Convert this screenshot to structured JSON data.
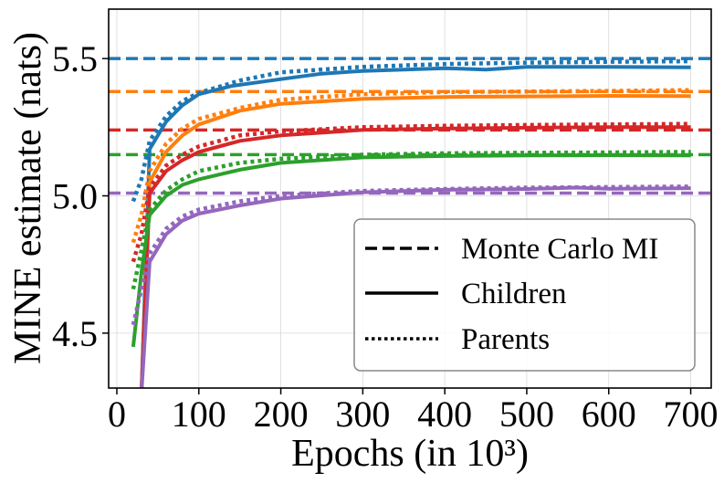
{
  "chart_data": {
    "type": "line",
    "title": "",
    "xlabel": "Epochs (in 10³)",
    "ylabel": "MINE estimate (nats)",
    "xlim": [
      -10,
      725
    ],
    "ylim": [
      4.3,
      5.68
    ],
    "xticks": [
      0,
      100,
      200,
      300,
      400,
      500,
      600,
      700
    ],
    "xtick_labels": [
      "0",
      "100",
      "200",
      "300",
      "400",
      "500",
      "600",
      "700"
    ],
    "yticks": [
      4.5,
      5.0,
      5.5
    ],
    "ytick_labels": [
      "4.5",
      "5.0",
      "5.5"
    ],
    "grid": true,
    "legend_position": "lower-right",
    "legend": [
      {
        "label": "Monte Carlo MI",
        "style": "dashed"
      },
      {
        "label": "Children",
        "style": "solid"
      },
      {
        "label": "Parents",
        "style": "dotted"
      }
    ],
    "series": [
      {
        "name": "blue",
        "color": "#1f77b4",
        "monte_carlo": 5.5,
        "children": {
          "x": [
            30,
            40,
            60,
            80,
            100,
            140,
            200,
            250,
            300,
            400,
            450,
            500,
            600,
            700
          ],
          "y": [
            4.28,
            5.17,
            5.27,
            5.33,
            5.37,
            5.4,
            5.425,
            5.445,
            5.455,
            5.465,
            5.46,
            5.47,
            5.47,
            5.468
          ]
        },
        "parents": {
          "x": [
            20,
            30,
            40,
            60,
            80,
            100,
            150,
            200,
            300,
            400,
            500,
            600,
            700
          ],
          "y": [
            4.98,
            5.06,
            5.2,
            5.29,
            5.345,
            5.375,
            5.42,
            5.45,
            5.47,
            5.48,
            5.485,
            5.488,
            5.49
          ]
        }
      },
      {
        "name": "orange",
        "color": "#ff7f0e",
        "monte_carlo": 5.38,
        "children": {
          "x": [
            30,
            40,
            60,
            80,
            100,
            150,
            200,
            300,
            400,
            500,
            600,
            700
          ],
          "y": [
            4.28,
            5.05,
            5.16,
            5.22,
            5.26,
            5.31,
            5.335,
            5.353,
            5.36,
            5.362,
            5.364,
            5.363
          ]
        },
        "parents": {
          "x": [
            20,
            30,
            40,
            60,
            80,
            100,
            150,
            200,
            300,
            400,
            500,
            600,
            700
          ],
          "y": [
            4.83,
            4.93,
            5.09,
            5.19,
            5.245,
            5.28,
            5.32,
            5.35,
            5.37,
            5.378,
            5.38,
            5.382,
            5.385
          ]
        }
      },
      {
        "name": "red",
        "color": "#d62728",
        "monte_carlo": 5.24,
        "children": {
          "x": [
            30,
            40,
            60,
            80,
            100,
            150,
            200,
            300,
            400,
            500,
            600,
            700
          ],
          "y": [
            4.28,
            5.01,
            5.09,
            5.13,
            5.16,
            5.2,
            5.22,
            5.24,
            5.245,
            5.248,
            5.25,
            5.25
          ]
        },
        "parents": {
          "x": [
            20,
            30,
            40,
            60,
            80,
            100,
            150,
            200,
            300,
            400,
            500,
            600,
            700
          ],
          "y": [
            4.76,
            4.86,
            5.03,
            5.11,
            5.15,
            5.18,
            5.22,
            5.235,
            5.25,
            5.255,
            5.258,
            5.26,
            5.262
          ]
        }
      },
      {
        "name": "green",
        "color": "#2ca02c",
        "monte_carlo": 5.15,
        "children": {
          "x": [
            20,
            30,
            40,
            60,
            80,
            100,
            150,
            200,
            300,
            400,
            500,
            600,
            700
          ],
          "y": [
            4.45,
            4.72,
            4.93,
            5.0,
            5.04,
            5.06,
            5.095,
            5.12,
            5.14,
            5.145,
            5.147,
            5.148,
            5.147
          ]
        },
        "parents": {
          "x": [
            20,
            30,
            40,
            60,
            80,
            100,
            150,
            200,
            300,
            400,
            500,
            600,
            700
          ],
          "y": [
            4.66,
            4.8,
            4.95,
            5.02,
            5.06,
            5.09,
            5.12,
            5.135,
            5.15,
            5.155,
            5.157,
            5.158,
            5.16
          ]
        }
      },
      {
        "name": "purple",
        "color": "#9467bd",
        "monte_carlo": 5.01,
        "children": {
          "x": [
            30,
            40,
            60,
            80,
            100,
            150,
            200,
            300,
            400,
            500,
            560,
            600,
            700
          ],
          "y": [
            4.28,
            4.76,
            4.86,
            4.91,
            4.935,
            4.965,
            4.99,
            5.013,
            5.022,
            5.025,
            5.03,
            5.026,
            5.028
          ]
        },
        "parents": {
          "x": [
            20,
            30,
            40,
            60,
            80,
            100,
            150,
            200,
            300,
            400,
            500,
            600,
            700
          ],
          "y": [
            4.53,
            4.66,
            4.79,
            4.88,
            4.925,
            4.95,
            4.98,
            5.0,
            5.018,
            5.025,
            5.03,
            5.032,
            5.034
          ]
        }
      }
    ]
  }
}
